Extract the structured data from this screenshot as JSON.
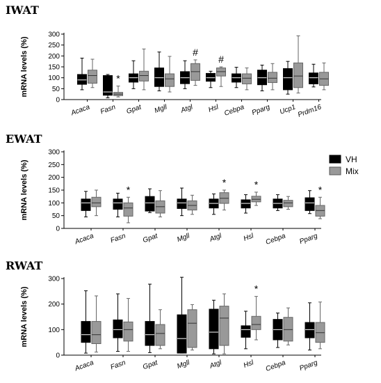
{
  "chart_data": [
    {
      "type": "box",
      "title": "IWAT",
      "ylabel": "mRNA levels (%)",
      "ylim": [
        0,
        300
      ],
      "yticks": [
        0,
        50,
        100,
        150,
        200,
        250,
        300
      ],
      "categories": [
        "Acaca",
        "Fasn",
        "Gpat",
        "Mgll",
        "Atgl",
        "Hsl",
        "Cebpa",
        "Pparg",
        "Ucp1",
        "Prdm16"
      ],
      "series": [
        {
          "name": "VH",
          "color": "#000000",
          "boxes": [
            {
              "min": 45,
              "q1": 70,
              "median": 90,
              "q3": 115,
              "max": 190
            },
            {
              "min": 8,
              "q1": 20,
              "median": 35,
              "q3": 110,
              "max": 115
            },
            {
              "min": 50,
              "q1": 80,
              "median": 100,
              "q3": 118,
              "max": 178
            },
            {
              "min": 40,
              "q1": 60,
              "median": 100,
              "q3": 145,
              "max": 218
            },
            {
              "min": 50,
              "q1": 73,
              "median": 100,
              "q3": 128,
              "max": 178
            },
            {
              "min": 55,
              "q1": 84,
              "median": 100,
              "q3": 120,
              "max": 130
            },
            {
              "min": 55,
              "q1": 80,
              "median": 100,
              "q3": 118,
              "max": 148
            },
            {
              "min": 40,
              "q1": 68,
              "median": 100,
              "q3": 135,
              "max": 158
            },
            {
              "min": 25,
              "q1": 45,
              "median": 100,
              "q3": 142,
              "max": 175
            },
            {
              "min": 58,
              "q1": 72,
              "median": 100,
              "q3": 122,
              "max": 162
            }
          ]
        },
        {
          "name": "Mix",
          "color": "#999999",
          "boxes": [
            {
              "min": 55,
              "q1": 75,
              "median": 110,
              "q3": 135,
              "max": 185
            },
            {
              "min": 12,
              "q1": 18,
              "median": 25,
              "q3": 33,
              "max": 62
            },
            {
              "min": 45,
              "q1": 85,
              "median": 110,
              "q3": 130,
              "max": 232
            },
            {
              "min": 35,
              "q1": 60,
              "median": 95,
              "q3": 118,
              "max": 198
            },
            {
              "min": 65,
              "q1": 88,
              "median": 128,
              "q3": 165,
              "max": 182
            },
            {
              "min": 60,
              "q1": 108,
              "median": 128,
              "q3": 145,
              "max": 150
            },
            {
              "min": 45,
              "q1": 72,
              "median": 98,
              "q3": 118,
              "max": 145
            },
            {
              "min": 45,
              "q1": 78,
              "median": 98,
              "q3": 125,
              "max": 165
            },
            {
              "min": 30,
              "q1": 55,
              "median": 108,
              "q3": 168,
              "max": 292
            },
            {
              "min": 45,
              "q1": 65,
              "median": 95,
              "q3": 125,
              "max": 168
            }
          ]
        }
      ],
      "annotations": [
        {
          "category": "Fasn",
          "text": "*"
        },
        {
          "category": "Atgl",
          "text": "#"
        },
        {
          "category": "Hsl",
          "text": "#"
        }
      ]
    },
    {
      "type": "box",
      "title": "EWAT",
      "ylabel": "mRNA levels (%)",
      "ylim": [
        0,
        300
      ],
      "yticks": [
        0,
        50,
        100,
        150,
        200,
        250,
        300
      ],
      "categories": [
        "Acaca",
        "Fasn",
        "Gpat",
        "Mgll",
        "Atgl",
        "Hsl",
        "Cebpa",
        "Pparg"
      ],
      "series": [
        {
          "name": "VH",
          "color": "#000000",
          "boxes": [
            {
              "min": 45,
              "q1": 70,
              "median": 100,
              "q3": 115,
              "max": 145
            },
            {
              "min": 45,
              "q1": 75,
              "median": 100,
              "q3": 115,
              "max": 138
            },
            {
              "min": 62,
              "q1": 68,
              "median": 100,
              "q3": 125,
              "max": 155
            },
            {
              "min": 50,
              "q1": 78,
              "median": 100,
              "q3": 115,
              "max": 158
            },
            {
              "min": 55,
              "q1": 80,
              "median": 98,
              "q3": 115,
              "max": 135
            },
            {
              "min": 60,
              "q1": 80,
              "median": 98,
              "q3": 112,
              "max": 132
            },
            {
              "min": 70,
              "q1": 80,
              "median": 98,
              "q3": 115,
              "max": 132
            },
            {
              "min": 58,
              "q1": 70,
              "median": 100,
              "q3": 120,
              "max": 148
            }
          ]
        },
        {
          "name": "Mix",
          "color": "#999999",
          "boxes": [
            {
              "min": 50,
              "q1": 85,
              "median": 100,
              "q3": 122,
              "max": 150
            },
            {
              "min": 22,
              "q1": 48,
              "median": 80,
              "q3": 100,
              "max": 122
            },
            {
              "min": 45,
              "q1": 60,
              "median": 85,
              "q3": 108,
              "max": 148
            },
            {
              "min": 55,
              "q1": 72,
              "median": 90,
              "q3": 108,
              "max": 130
            },
            {
              "min": 72,
              "q1": 98,
              "median": 118,
              "q3": 140,
              "max": 150
            },
            {
              "min": 90,
              "q1": 104,
              "median": 114,
              "q3": 126,
              "max": 142
            },
            {
              "min": 75,
              "q1": 85,
              "median": 100,
              "q3": 110,
              "max": 125
            },
            {
              "min": 38,
              "q1": 48,
              "median": 70,
              "q3": 90,
              "max": 122
            }
          ]
        }
      ],
      "annotations": [
        {
          "category": "Fasn",
          "text": "*"
        },
        {
          "category": "Atgl",
          "text": "*"
        },
        {
          "category": "Hsl",
          "text": "*"
        },
        {
          "category": "Pparg",
          "text": "*"
        }
      ]
    },
    {
      "type": "box",
      "title": "RWAT",
      "ylabel": "mRNA levels (%)",
      "ylim": [
        0,
        300
      ],
      "yticks": [
        0,
        100,
        200,
        300
      ],
      "categories": [
        "Acaca",
        "Fasn",
        "Gpat",
        "Mgll",
        "Atgl",
        "Hsl",
        "Cebpa",
        "Pparg"
      ],
      "series": [
        {
          "name": "VH",
          "color": "#000000",
          "boxes": [
            {
              "min": 8,
              "q1": 50,
              "median": 80,
              "q3": 132,
              "max": 252
            },
            {
              "min": 15,
              "q1": 68,
              "median": 100,
              "q3": 138,
              "max": 240
            },
            {
              "min": 10,
              "q1": 38,
              "median": 80,
              "q3": 132,
              "max": 278
            },
            {
              "min": 8,
              "q1": 8,
              "median": 65,
              "q3": 158,
              "max": 305
            },
            {
              "min": 5,
              "q1": 25,
              "median": 90,
              "q3": 180,
              "max": 215
            },
            {
              "min": 25,
              "q1": 70,
              "median": 100,
              "q3": 115,
              "max": 172
            },
            {
              "min": 30,
              "q1": 60,
              "median": 100,
              "q3": 140,
              "max": 165
            },
            {
              "min": 20,
              "q1": 68,
              "median": 100,
              "q3": 128,
              "max": 205
            }
          ]
        },
        {
          "name": "Mix",
          "color": "#999999",
          "boxes": [
            {
              "min": 12,
              "q1": 45,
              "median": 80,
              "q3": 132,
              "max": 232
            },
            {
              "min": 15,
              "q1": 55,
              "median": 100,
              "q3": 130,
              "max": 222
            },
            {
              "min": 25,
              "q1": 38,
              "median": 85,
              "q3": 120,
              "max": 178
            },
            {
              "min": 20,
              "q1": 30,
              "median": 125,
              "q3": 178,
              "max": 198
            },
            {
              "min": 5,
              "q1": 38,
              "median": 145,
              "q3": 192,
              "max": 240
            },
            {
              "min": 60,
              "q1": 100,
              "median": 120,
              "q3": 152,
              "max": 230
            },
            {
              "min": 40,
              "q1": 55,
              "median": 100,
              "q3": 148,
              "max": 185
            },
            {
              "min": 25,
              "q1": 50,
              "median": 88,
              "q3": 128,
              "max": 208
            }
          ]
        }
      ],
      "annotations": [
        {
          "category": "Hsl",
          "text": "*"
        }
      ]
    }
  ],
  "legend": [
    {
      "label": "VH",
      "color": "#000000"
    },
    {
      "label": "Mix",
      "color": "#999999"
    }
  ]
}
